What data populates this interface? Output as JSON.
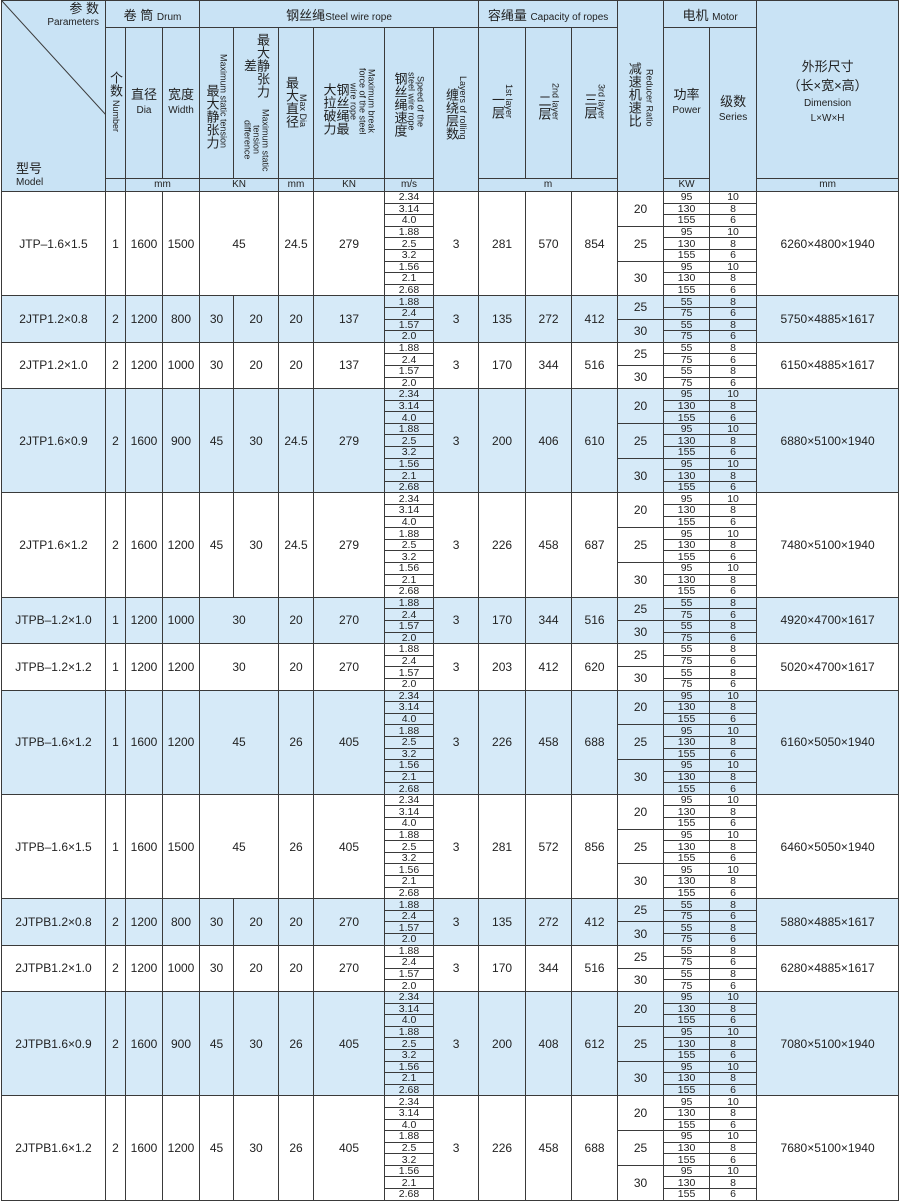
{
  "header": {
    "parameters_zh": "参 数",
    "parameters_en": "Parameters",
    "model_zh": "型号",
    "model_en": "Model",
    "drum_zh": "卷 筒",
    "drum_en": "Drum",
    "number_zh": "个数",
    "number_en": "Number",
    "dia_zh": "直径",
    "dia_en": "Dia",
    "width_zh": "宽度",
    "width_en": "Width",
    "rope_zh": "钢丝绳",
    "rope_en": "Steel wire rope",
    "max_static_zh": "最大静张力",
    "max_static_en": "Maximum static tension",
    "diff_zh": "最大静张力差",
    "diff_en": "Maximum static tension difference",
    "max_dia_zh": "最大直径",
    "max_dia_en": "Max Dia",
    "break_zh": "钢丝绳最大拉破力",
    "break_en": "Maximum break force of the steel wire rope",
    "speed_zh": "钢丝绳速度",
    "speed_en": "Speed of the steel wire rope",
    "layers_zh": "缠绕层数",
    "layers_en": "Layers of rolling",
    "capacity_zh": "容绳量",
    "capacity_en": "Capacity of ropes",
    "l1_zh": "一层",
    "l1_en": "1st layer",
    "l2_zh": "二层",
    "l2_en": "2nd layer",
    "l3_zh": "三层",
    "l3_en": "3rd layer",
    "reducer_zh": "减速机速比",
    "reducer_en": "Reducer Ratio",
    "motor_zh": "电机",
    "motor_en": "Motor",
    "power_zh": "功率",
    "power_en": "Power",
    "series_zh": "级数",
    "series_en": "Series",
    "dim_zh": "外形尺寸",
    "dim_zh2": "（长×宽×高）",
    "dim_en": "Dimension",
    "dim_en2": "L×W×H",
    "unit_mm": "mm",
    "unit_kn": "KN",
    "unit_ms": "m/s",
    "unit_m": "m",
    "unit_kw": "KW"
  },
  "colors": {
    "header_bg": "#c9e3f5",
    "alt_row_bg": "#d6eaf8",
    "border": "#3a3a3a"
  },
  "rows": [
    {
      "model": "JTP–1.6×1.5",
      "number": "1",
      "dia": "1600",
      "width": "1500",
      "tension": "45",
      "diff": null,
      "max_dia": "24.5",
      "break": "279",
      "speeds": [
        "2.34",
        "3.14",
        "4.0",
        "1.88",
        "2.5",
        "3.2",
        "1.56",
        "2.1",
        "2.68"
      ],
      "layers": "3",
      "cap": [
        "281",
        "570",
        "854"
      ],
      "ratios": [
        {
          "ratio": "20",
          "motors": [
            [
              "95",
              "10"
            ],
            [
              "130",
              "8"
            ],
            [
              "155",
              "6"
            ]
          ]
        },
        {
          "ratio": "25",
          "motors": [
            [
              "95",
              "10"
            ],
            [
              "130",
              "8"
            ],
            [
              "155",
              "6"
            ]
          ]
        },
        {
          "ratio": "30",
          "motors": [
            [
              "95",
              "10"
            ],
            [
              "130",
              "8"
            ],
            [
              "155",
              "6"
            ]
          ]
        }
      ],
      "dim": "6260×4800×1940"
    },
    {
      "model": "2JTP1.2×0.8",
      "number": "2",
      "dia": "1200",
      "width": "800",
      "tension": "30",
      "diff": "20",
      "max_dia": "20",
      "break": "137",
      "speeds": [
        "1.88",
        "2.4",
        "1.57",
        "2.0"
      ],
      "layers": "3",
      "cap": [
        "135",
        "272",
        "412"
      ],
      "ratios": [
        {
          "ratio": "25",
          "motors": [
            [
              "55",
              "8"
            ],
            [
              "75",
              "6"
            ]
          ]
        },
        {
          "ratio": "30",
          "motors": [
            [
              "55",
              "8"
            ],
            [
              "75",
              "6"
            ]
          ]
        }
      ],
      "dim": "5750×4885×1617"
    },
    {
      "model": "2JTP1.2×1.0",
      "number": "2",
      "dia": "1200",
      "width": "1000",
      "tension": "30",
      "diff": "20",
      "max_dia": "20",
      "break": "137",
      "speeds": [
        "1.88",
        "2.4",
        "1.57",
        "2.0"
      ],
      "layers": "3",
      "cap": [
        "170",
        "344",
        "516"
      ],
      "ratios": [
        {
          "ratio": "25",
          "motors": [
            [
              "55",
              "8"
            ],
            [
              "75",
              "6"
            ]
          ]
        },
        {
          "ratio": "30",
          "motors": [
            [
              "55",
              "8"
            ],
            [
              "75",
              "6"
            ]
          ]
        }
      ],
      "dim": "6150×4885×1617"
    },
    {
      "model": "2JTP1.6×0.9",
      "number": "2",
      "dia": "1600",
      "width": "900",
      "tension": "45",
      "diff": "30",
      "max_dia": "24.5",
      "break": "279",
      "speeds": [
        "2.34",
        "3.14",
        "4.0",
        "1.88",
        "2.5",
        "3.2",
        "1.56",
        "2.1",
        "2.68"
      ],
      "layers": "3",
      "cap": [
        "200",
        "406",
        "610"
      ],
      "ratios": [
        {
          "ratio": "20",
          "motors": [
            [
              "95",
              "10"
            ],
            [
              "130",
              "8"
            ],
            [
              "155",
              "6"
            ]
          ]
        },
        {
          "ratio": "25",
          "motors": [
            [
              "95",
              "10"
            ],
            [
              "130",
              "8"
            ],
            [
              "155",
              "6"
            ]
          ]
        },
        {
          "ratio": "30",
          "motors": [
            [
              "95",
              "10"
            ],
            [
              "130",
              "8"
            ],
            [
              "155",
              "6"
            ]
          ]
        }
      ],
      "dim": "6880×5100×1940"
    },
    {
      "model": "2JTP1.6×1.2",
      "number": "2",
      "dia": "1600",
      "width": "1200",
      "tension": "45",
      "diff": "30",
      "max_dia": "24.5",
      "break": "279",
      "speeds": [
        "2.34",
        "3.14",
        "4.0",
        "1.88",
        "2.5",
        "3.2",
        "1.56",
        "2.1",
        "2.68"
      ],
      "layers": "3",
      "cap": [
        "226",
        "458",
        "687"
      ],
      "ratios": [
        {
          "ratio": "20",
          "motors": [
            [
              "95",
              "10"
            ],
            [
              "130",
              "8"
            ],
            [
              "155",
              "6"
            ]
          ]
        },
        {
          "ratio": "25",
          "motors": [
            [
              "95",
              "10"
            ],
            [
              "130",
              "8"
            ],
            [
              "155",
              "6"
            ]
          ]
        },
        {
          "ratio": "30",
          "motors": [
            [
              "95",
              "10"
            ],
            [
              "130",
              "8"
            ],
            [
              "155",
              "6"
            ]
          ]
        }
      ],
      "dim": "7480×5100×1940"
    },
    {
      "model": "JTPB–1.2×1.0",
      "number": "1",
      "dia": "1200",
      "width": "1000",
      "tension": "30",
      "diff": null,
      "max_dia": "20",
      "break": "270",
      "speeds": [
        "1.88",
        "2.4",
        "1.57",
        "2.0"
      ],
      "layers": "3",
      "cap": [
        "170",
        "344",
        "516"
      ],
      "ratios": [
        {
          "ratio": "25",
          "motors": [
            [
              "55",
              "8"
            ],
            [
              "75",
              "6"
            ]
          ]
        },
        {
          "ratio": "30",
          "motors": [
            [
              "55",
              "8"
            ],
            [
              "75",
              "6"
            ]
          ]
        }
      ],
      "dim": "4920×4700×1617"
    },
    {
      "model": "JTPB–1.2×1.2",
      "number": "1",
      "dia": "1200",
      "width": "1200",
      "tension": "30",
      "diff": null,
      "max_dia": "20",
      "break": "270",
      "speeds": [
        "1.88",
        "2.4",
        "1.57",
        "2.0"
      ],
      "layers": "3",
      "cap": [
        "203",
        "412",
        "620"
      ],
      "ratios": [
        {
          "ratio": "25",
          "motors": [
            [
              "55",
              "8"
            ],
            [
              "75",
              "6"
            ]
          ]
        },
        {
          "ratio": "30",
          "motors": [
            [
              "55",
              "8"
            ],
            [
              "75",
              "6"
            ]
          ]
        }
      ],
      "dim": "5020×4700×1617"
    },
    {
      "model": "JTPB–1.6×1.2",
      "number": "1",
      "dia": "1600",
      "width": "1200",
      "tension": "45",
      "diff": null,
      "max_dia": "26",
      "break": "405",
      "speeds": [
        "2.34",
        "3.14",
        "4.0",
        "1.88",
        "2.5",
        "3.2",
        "1.56",
        "2.1",
        "2.68"
      ],
      "layers": "3",
      "cap": [
        "226",
        "458",
        "688"
      ],
      "ratios": [
        {
          "ratio": "20",
          "motors": [
            [
              "95",
              "10"
            ],
            [
              "130",
              "8"
            ],
            [
              "155",
              "6"
            ]
          ]
        },
        {
          "ratio": "25",
          "motors": [
            [
              "95",
              "10"
            ],
            [
              "130",
              "8"
            ],
            [
              "155",
              "6"
            ]
          ]
        },
        {
          "ratio": "30",
          "motors": [
            [
              "95",
              "10"
            ],
            [
              "130",
              "8"
            ],
            [
              "155",
              "6"
            ]
          ]
        }
      ],
      "dim": "6160×5050×1940"
    },
    {
      "model": "JTPB–1.6×1.5",
      "number": "1",
      "dia": "1600",
      "width": "1500",
      "tension": "45",
      "diff": null,
      "max_dia": "26",
      "break": "405",
      "speeds": [
        "2.34",
        "3.14",
        "4.0",
        "1.88",
        "2.5",
        "3.2",
        "1.56",
        "2.1",
        "2.68"
      ],
      "layers": "3",
      "cap": [
        "281",
        "572",
        "856"
      ],
      "ratios": [
        {
          "ratio": "20",
          "motors": [
            [
              "95",
              "10"
            ],
            [
              "130",
              "8"
            ],
            [
              "155",
              "6"
            ]
          ]
        },
        {
          "ratio": "25",
          "motors": [
            [
              "95",
              "10"
            ],
            [
              "130",
              "8"
            ],
            [
              "155",
              "6"
            ]
          ]
        },
        {
          "ratio": "30",
          "motors": [
            [
              "95",
              "10"
            ],
            [
              "130",
              "8"
            ],
            [
              "155",
              "6"
            ]
          ]
        }
      ],
      "dim": "6460×5050×1940"
    },
    {
      "model": "2JTPB1.2×0.8",
      "number": "2",
      "dia": "1200",
      "width": "800",
      "tension": "30",
      "diff": "20",
      "max_dia": "20",
      "break": "270",
      "speeds": [
        "1.88",
        "2.4",
        "1.57",
        "2.0"
      ],
      "layers": "3",
      "cap": [
        "135",
        "272",
        "412"
      ],
      "ratios": [
        {
          "ratio": "25",
          "motors": [
            [
              "55",
              "8"
            ],
            [
              "75",
              "6"
            ]
          ]
        },
        {
          "ratio": "30",
          "motors": [
            [
              "55",
              "8"
            ],
            [
              "75",
              "6"
            ]
          ]
        }
      ],
      "dim": "5880×4885×1617"
    },
    {
      "model": "2JTPB1.2×1.0",
      "number": "2",
      "dia": "1200",
      "width": "1000",
      "tension": "30",
      "diff": "20",
      "max_dia": "20",
      "break": "270",
      "speeds": [
        "1.88",
        "2.4",
        "1.57",
        "2.0"
      ],
      "layers": "3",
      "cap": [
        "170",
        "344",
        "516"
      ],
      "ratios": [
        {
          "ratio": "25",
          "motors": [
            [
              "55",
              "8"
            ],
            [
              "75",
              "6"
            ]
          ]
        },
        {
          "ratio": "30",
          "motors": [
            [
              "55",
              "8"
            ],
            [
              "75",
              "6"
            ]
          ]
        }
      ],
      "dim": "6280×4885×1617"
    },
    {
      "model": "2JTPB1.6×0.9",
      "number": "2",
      "dia": "1600",
      "width": "900",
      "tension": "45",
      "diff": "30",
      "max_dia": "26",
      "break": "405",
      "speeds": [
        "2.34",
        "3.14",
        "4.0",
        "1.88",
        "2.5",
        "3.2",
        "1.56",
        "2.1",
        "2.68"
      ],
      "layers": "3",
      "cap": [
        "200",
        "408",
        "612"
      ],
      "ratios": [
        {
          "ratio": "20",
          "motors": [
            [
              "95",
              "10"
            ],
            [
              "130",
              "8"
            ],
            [
              "155",
              "6"
            ]
          ]
        },
        {
          "ratio": "25",
          "motors": [
            [
              "95",
              "10"
            ],
            [
              "130",
              "8"
            ],
            [
              "155",
              "6"
            ]
          ]
        },
        {
          "ratio": "30",
          "motors": [
            [
              "95",
              "10"
            ],
            [
              "130",
              "8"
            ],
            [
              "155",
              "6"
            ]
          ]
        }
      ],
      "dim": "7080×5100×1940"
    },
    {
      "model": "2JTPB1.6×1.2",
      "number": "2",
      "dia": "1600",
      "width": "1200",
      "tension": "45",
      "diff": "30",
      "max_dia": "26",
      "break": "405",
      "speeds": [
        "2.34",
        "3.14",
        "4.0",
        "1.88",
        "2.5",
        "3.2",
        "1.56",
        "2.1",
        "2.68"
      ],
      "layers": "3",
      "cap": [
        "226",
        "458",
        "688"
      ],
      "ratios": [
        {
          "ratio": "20",
          "motors": [
            [
              "95",
              "10"
            ],
            [
              "130",
              "8"
            ],
            [
              "155",
              "6"
            ]
          ]
        },
        {
          "ratio": "25",
          "motors": [
            [
              "95",
              "10"
            ],
            [
              "130",
              "8"
            ],
            [
              "155",
              "6"
            ]
          ]
        },
        {
          "ratio": "30",
          "motors": [
            [
              "95",
              "10"
            ],
            [
              "130",
              "8"
            ],
            [
              "155",
              "6"
            ]
          ]
        }
      ],
      "dim": "7680×5100×1940"
    }
  ]
}
